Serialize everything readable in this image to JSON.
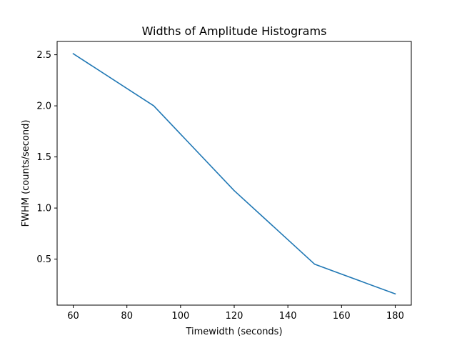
{
  "chart_data": {
    "type": "line",
    "title": "Widths of Amplitude Histograms",
    "xlabel": "Timewidth (seconds)",
    "ylabel": "FWHM (counts/second)",
    "xlim": [
      54,
      186
    ],
    "ylim": [
      0.05,
      2.63
    ],
    "x_ticks": [
      60,
      80,
      100,
      120,
      140,
      160,
      180
    ],
    "y_ticks": [
      0.5,
      1.0,
      1.5,
      2.0,
      2.5
    ],
    "x_tick_labels": [
      "60",
      "80",
      "100",
      "120",
      "140",
      "160",
      "180"
    ],
    "y_tick_labels": [
      "0.5",
      "1.0",
      "1.5",
      "2.0",
      "2.5"
    ],
    "grid": false,
    "series": [
      {
        "color": "#1f77b4",
        "x": [
          60,
          90,
          120,
          150,
          180
        ],
        "y": [
          2.51,
          2.0,
          1.17,
          0.45,
          0.16
        ]
      }
    ]
  }
}
